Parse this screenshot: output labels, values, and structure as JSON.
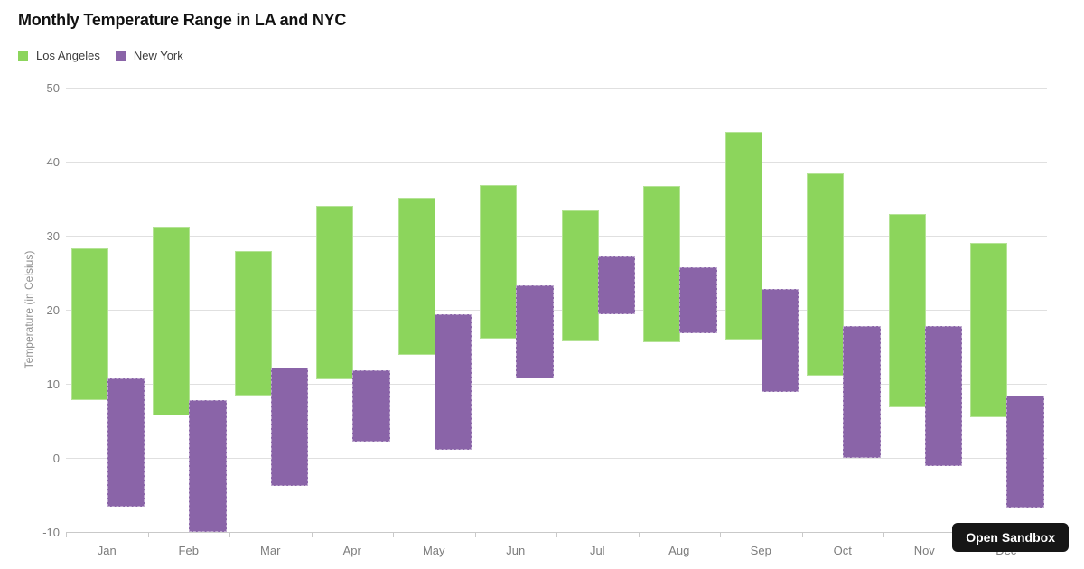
{
  "header": {
    "title": "Monthly Temperature Range in LA and NYC"
  },
  "legend": {
    "items": [
      {
        "label": "Los Angeles",
        "color": "#8cd55c"
      },
      {
        "label": "New York",
        "color": "#8a64a8"
      }
    ]
  },
  "overlay": {
    "open_sandbox_label": "Open Sandbox"
  },
  "colors": {
    "grid": "#e0e0e0",
    "axis": "#c9c9c9",
    "tick_label": "#7d7d7d",
    "title": "#111111",
    "legend_text": "#3b3b3b",
    "button_bg": "#161616",
    "button_text": "#ffffff"
  },
  "chart_data": {
    "type": "bar",
    "subtype": "floating-range-columns",
    "title": "Monthly Temperature Range in LA and NYC",
    "xlabel": "",
    "ylabel": "Temperature (in Celsius)",
    "ylim": [
      -10,
      50
    ],
    "yticks": [
      50,
      40,
      30,
      20,
      10,
      0,
      -10
    ],
    "grid": true,
    "legend_position": "top-left",
    "categories": [
      "Jan",
      "Feb",
      "Mar",
      "Apr",
      "May",
      "Jun",
      "Jul",
      "Aug",
      "Sep",
      "Oct",
      "Nov",
      "Dec"
    ],
    "series": [
      {
        "name": "Los Angeles",
        "color": "#8cd55c",
        "ranges": [
          [
            7.8,
            28.3
          ],
          [
            5.7,
            31.2
          ],
          [
            8.4,
            27.9
          ],
          [
            10.6,
            34.0
          ],
          [
            13.9,
            35.1
          ],
          [
            16.1,
            36.8
          ],
          [
            15.7,
            33.4
          ],
          [
            15.6,
            36.7
          ],
          [
            16.0,
            44.0
          ],
          [
            11.1,
            38.4
          ],
          [
            6.8,
            32.9
          ],
          [
            5.5,
            29.0
          ]
        ]
      },
      {
        "name": "New York",
        "color": "#8a64a8",
        "ranges": [
          [
            -6.6,
            10.7
          ],
          [
            -10.0,
            7.8
          ],
          [
            -3.8,
            12.2
          ],
          [
            2.2,
            11.8
          ],
          [
            1.1,
            19.4
          ],
          [
            10.7,
            23.3
          ],
          [
            19.4,
            27.3
          ],
          [
            16.8,
            25.7
          ],
          [
            8.9,
            22.8
          ],
          [
            0.0,
            17.8
          ],
          [
            -1.1,
            17.8
          ],
          [
            -6.7,
            8.4
          ]
        ]
      }
    ]
  }
}
